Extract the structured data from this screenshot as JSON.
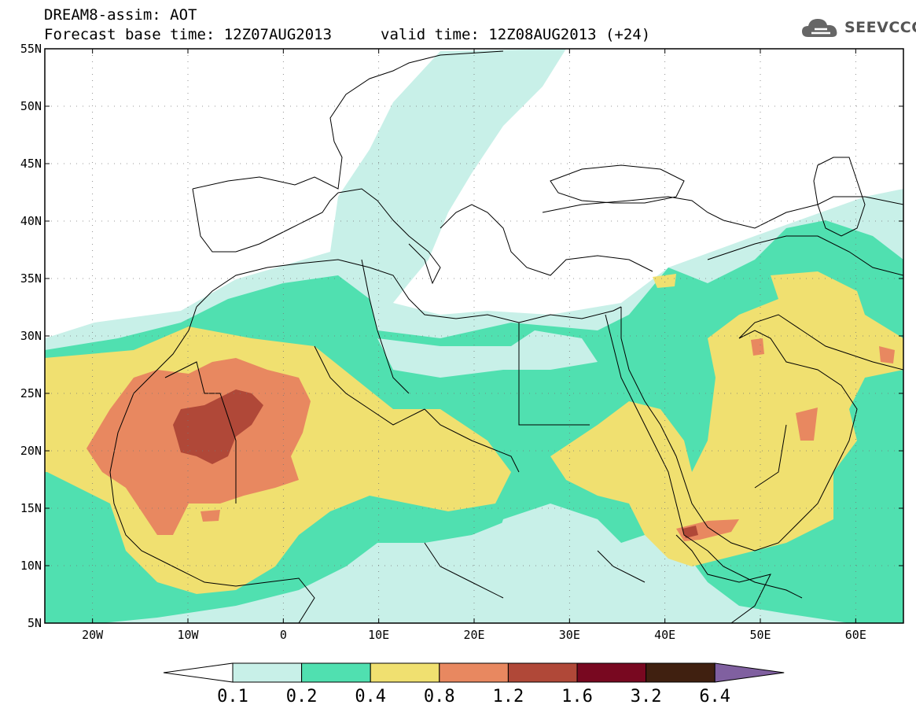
{
  "header": {
    "line1": "DREAM8-assim: AOT",
    "line2": "Forecast base time: 12Z07AUG2013",
    "valid": "valid time: 12Z08AUG2013 (+24)",
    "logo_text": "SEEVCCC"
  },
  "map": {
    "extent": {
      "lon_min": -25,
      "lon_max": 65,
      "lat_min": 5,
      "lat_max": 55
    },
    "lat_ticks": [
      {
        "lat": 55,
        "label": "55N"
      },
      {
        "lat": 50,
        "label": "50N"
      },
      {
        "lat": 45,
        "label": "45N"
      },
      {
        "lat": 40,
        "label": "40N"
      },
      {
        "lat": 35,
        "label": "35N"
      },
      {
        "lat": 30,
        "label": "30N"
      },
      {
        "lat": 25,
        "label": "25N"
      },
      {
        "lat": 20,
        "label": "20N"
      },
      {
        "lat": 15,
        "label": "15N"
      },
      {
        "lat": 10,
        "label": "10N"
      },
      {
        "lat": 5,
        "label": "5N"
      }
    ],
    "lon_ticks": [
      {
        "lon": -20,
        "label": "20W"
      },
      {
        "lon": -10,
        "label": "10W"
      },
      {
        "lon": 0,
        "label": "0"
      },
      {
        "lon": 10,
        "label": "10E"
      },
      {
        "lon": 20,
        "label": "20E"
      },
      {
        "lon": 30,
        "label": "30E"
      },
      {
        "lon": 40,
        "label": "40E"
      },
      {
        "lon": 50,
        "label": "50E"
      },
      {
        "lon": 60,
        "label": "60E"
      }
    ]
  },
  "colorbar": {
    "levels": [
      "0.1",
      "0.2",
      "0.4",
      "0.8",
      "1.2",
      "1.6",
      "3.2",
      "6.4"
    ],
    "colors": [
      "#ffffff",
      "#c8f0e8",
      "#50e0b0",
      "#f0e070",
      "#e88860",
      "#b04838",
      "#780820",
      "#402010",
      "#8060a0"
    ]
  }
}
